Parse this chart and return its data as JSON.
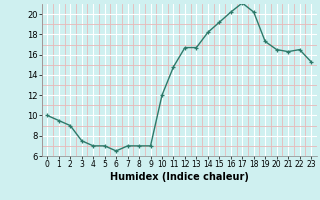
{
  "x": [
    0,
    1,
    2,
    3,
    4,
    5,
    6,
    7,
    8,
    9,
    10,
    11,
    12,
    13,
    14,
    15,
    16,
    17,
    18,
    19,
    20,
    21,
    22,
    23
  ],
  "y": [
    10,
    9.5,
    9,
    7.5,
    7,
    7,
    6.5,
    7,
    7,
    7,
    12,
    14.8,
    16.7,
    16.7,
    18.2,
    19.2,
    20.2,
    21.1,
    20.2,
    17.3,
    16.5,
    16.3,
    16.5,
    15.3
  ],
  "xlabel": "Humidex (Indice chaleur)",
  "line_color": "#2d7a6a",
  "marker_color": "#2d7a6a",
  "bg_color": "#cff0f0",
  "grid_major_color": "#ffffff",
  "grid_minor_color": "#e8b8b8",
  "xlim": [
    -0.5,
    23.5
  ],
  "ylim": [
    6,
    21
  ],
  "yticks": [
    6,
    8,
    10,
    12,
    14,
    16,
    18,
    20
  ],
  "xticks": [
    0,
    1,
    2,
    3,
    4,
    5,
    6,
    7,
    8,
    9,
    10,
    11,
    12,
    13,
    14,
    15,
    16,
    17,
    18,
    19,
    20,
    21,
    22,
    23
  ]
}
